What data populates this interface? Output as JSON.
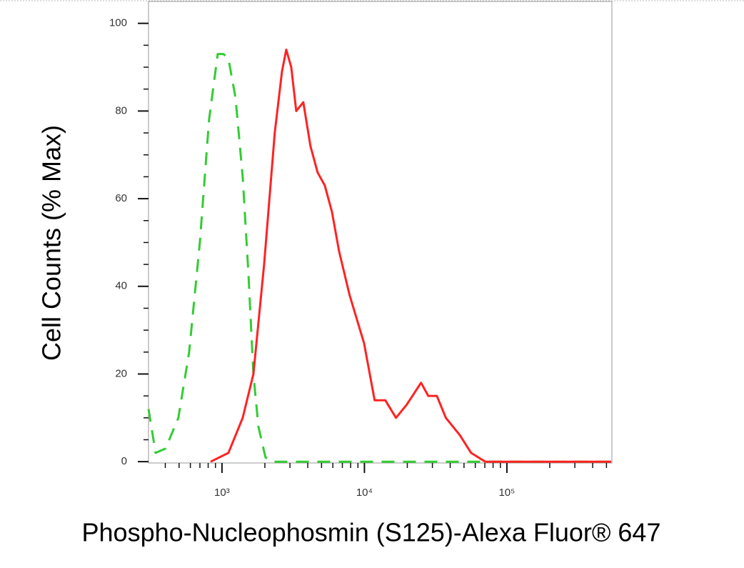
{
  "chart_data": {
    "type": "line",
    "x_label": "Phospho-Nucleophosmin (S125)-Alexa Fluor® 647",
    "y_label": "Cell Counts (% Max)",
    "x_scale": "log",
    "xlim": [
      305,
      546000
    ],
    "ylim": [
      -0.3,
      105
    ],
    "xticks": [
      {
        "value": 1000,
        "label": "10³"
      },
      {
        "value": 10000,
        "label": "10⁴"
      },
      {
        "value": 100000,
        "label": "10⁵"
      }
    ],
    "yticks": [
      0,
      20,
      40,
      60,
      80,
      100
    ],
    "series": [
      {
        "color": "#33cc33",
        "dash": true,
        "x": [
          305,
          342,
          402,
          494,
          588,
          699,
          812,
          933,
          1023,
          1109,
          1245,
          1398,
          1533,
          1662,
          1801,
          2020,
          2217,
          540000
        ],
        "values": [
          12,
          2,
          3,
          10,
          25,
          50,
          78,
          93,
          93,
          92,
          83,
          65,
          43,
          20,
          8,
          1,
          0,
          0
        ]
      },
      {
        "color": "#ff2222",
        "dash": false,
        "x": [
          832,
          1109,
          1398,
          1662,
          1976,
          2347,
          2636,
          2826,
          3063,
          3320,
          3724,
          4180,
          4692,
          5268,
          5913,
          6639,
          7870,
          9943,
          11800,
          14020,
          16660,
          19800,
          24980,
          28050,
          32240,
          37290,
          46900,
          56060,
          70500,
          540000
        ],
        "values": [
          0,
          2,
          10,
          20,
          45,
          75,
          89,
          94,
          90,
          80,
          82,
          72,
          66,
          63,
          57,
          48,
          38,
          27,
          14,
          14,
          10,
          13,
          18,
          15,
          15,
          10,
          6,
          2,
          0,
          0
        ]
      }
    ]
  }
}
